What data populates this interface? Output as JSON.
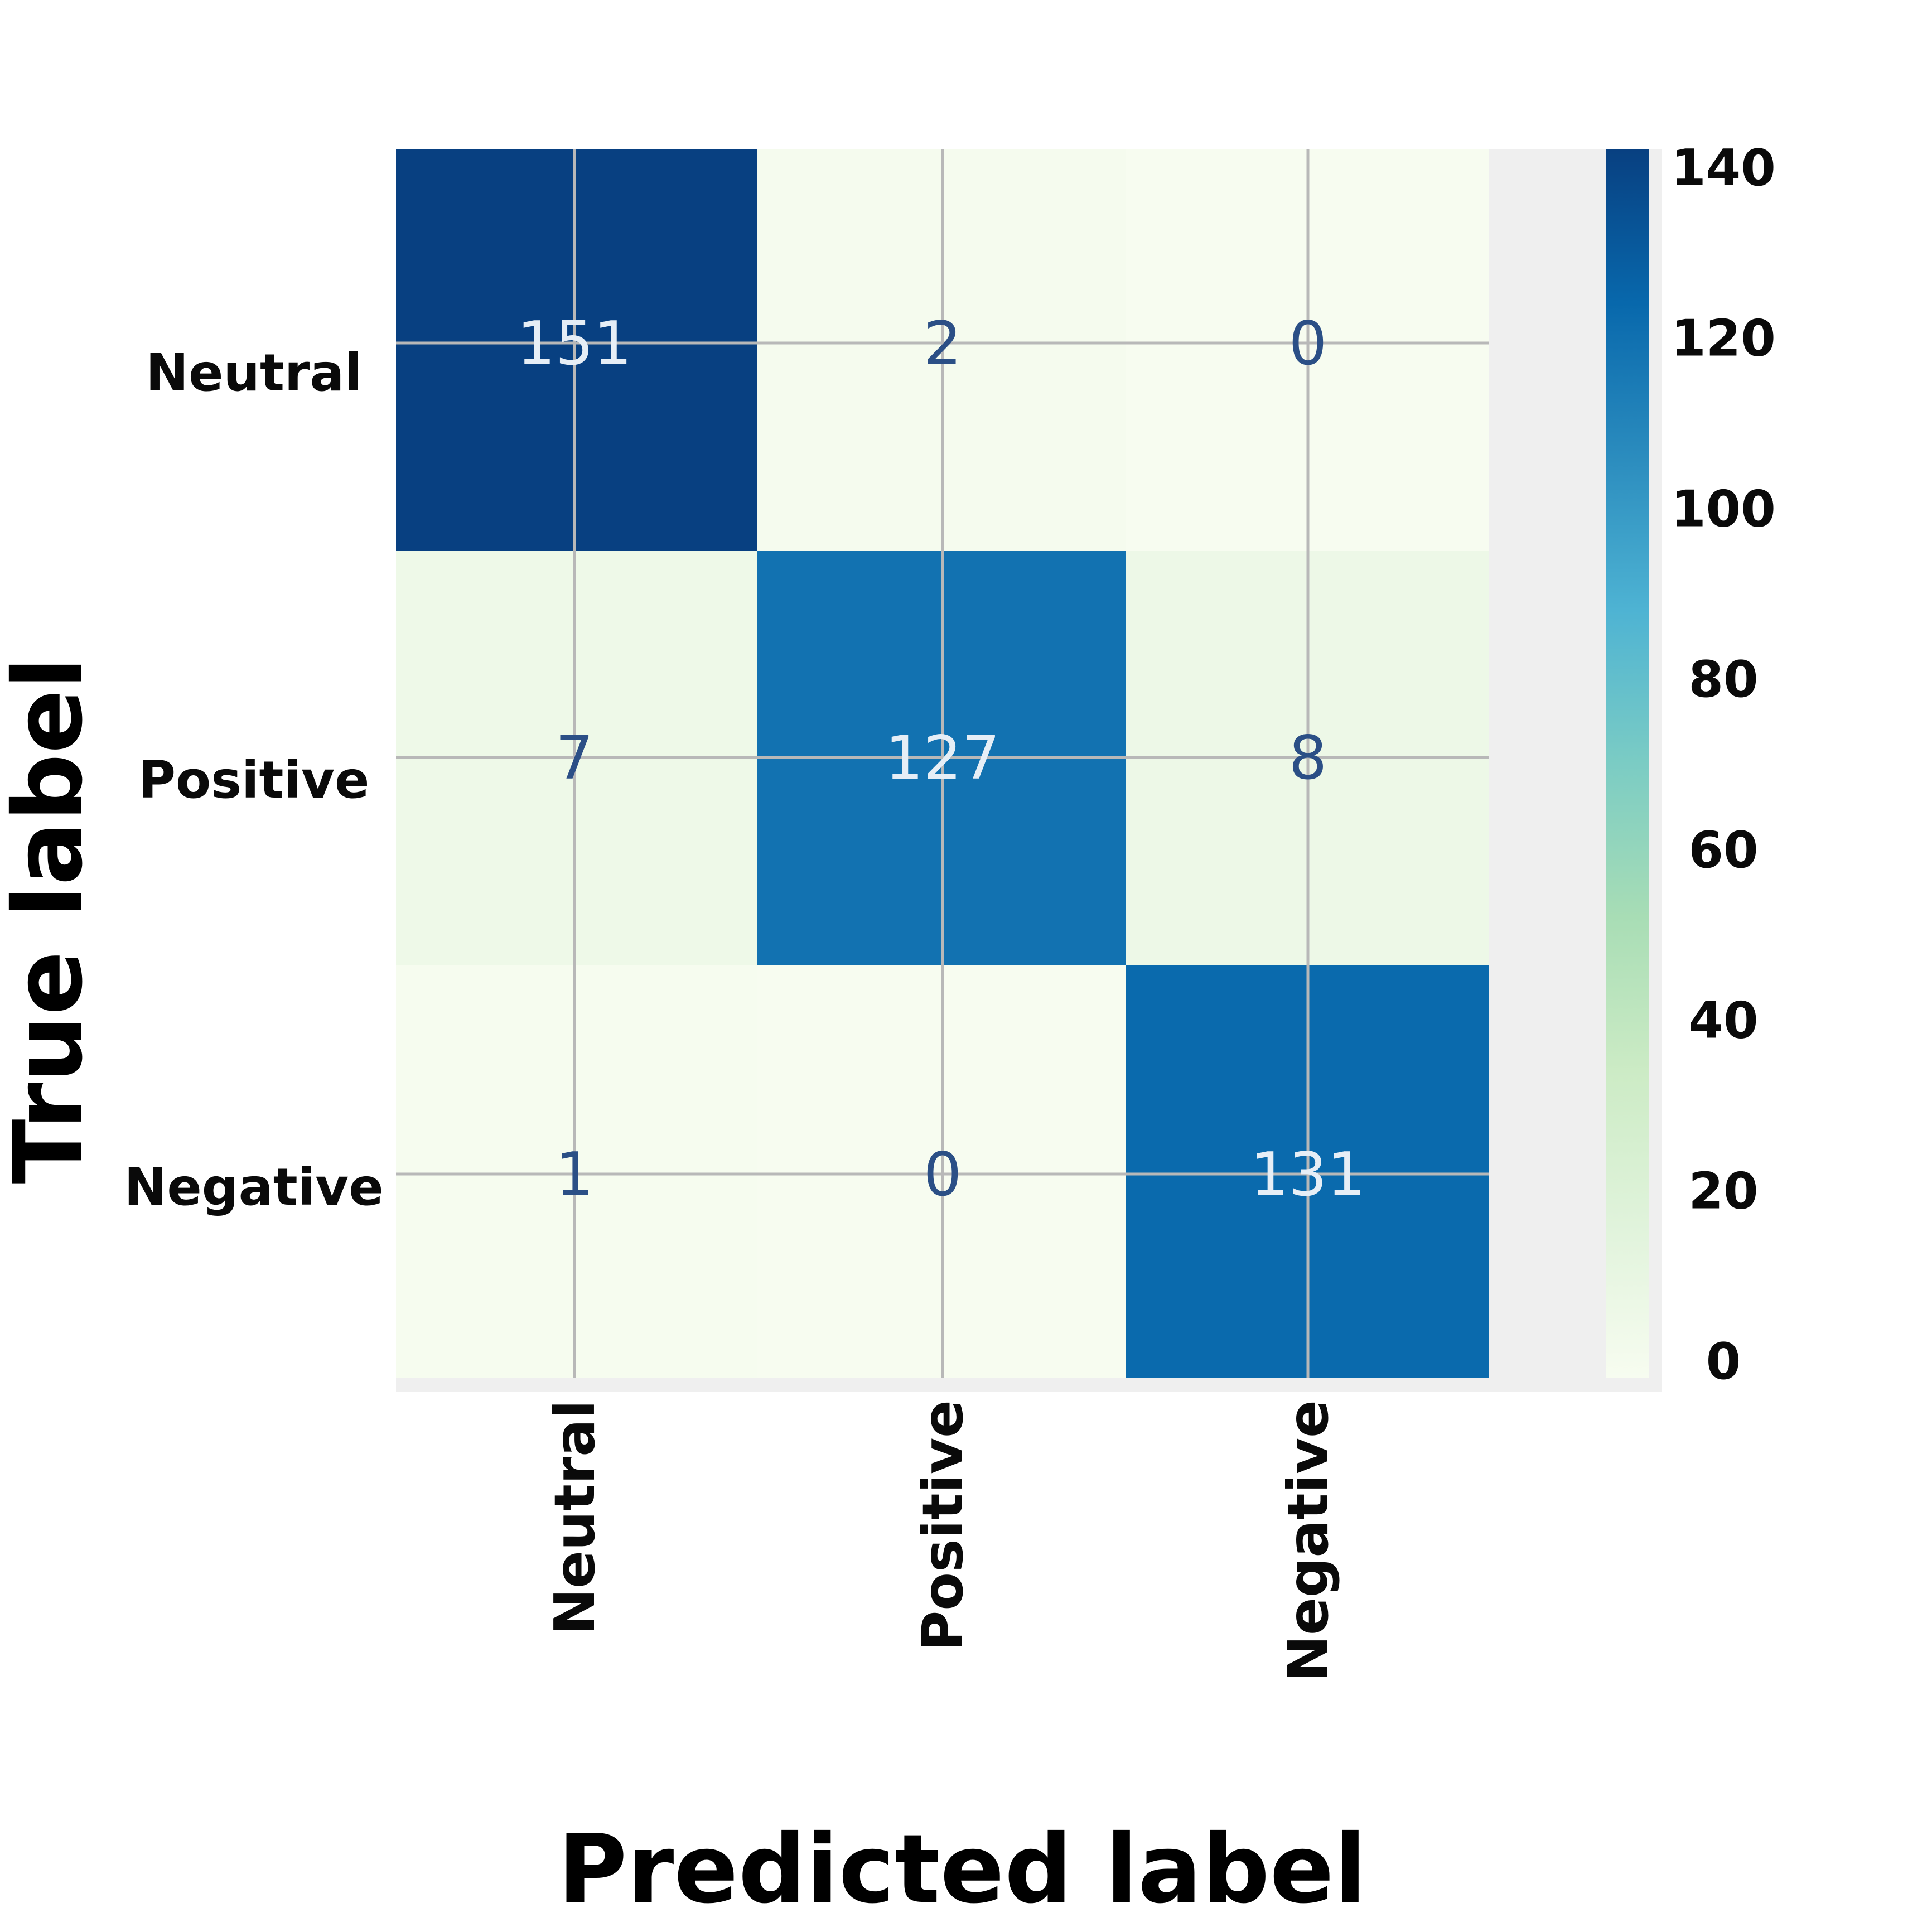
{
  "chart_data": {
    "type": "heatmap",
    "title": "",
    "xlabel": "Predicted label",
    "ylabel": "True label",
    "x_categories": [
      "Neutral",
      "Positive",
      "Negative"
    ],
    "y_categories": [
      "Neutral",
      "Positive",
      "Negative"
    ],
    "values": [
      [
        151,
        2,
        0
      ],
      [
        7,
        127,
        8
      ],
      [
        1,
        0,
        131
      ]
    ],
    "colorbar": {
      "ticks": [
        0,
        20,
        40,
        60,
        80,
        100,
        120,
        140
      ],
      "range": [
        0,
        151
      ],
      "colormap": "GnBu"
    },
    "grid": true
  }
}
